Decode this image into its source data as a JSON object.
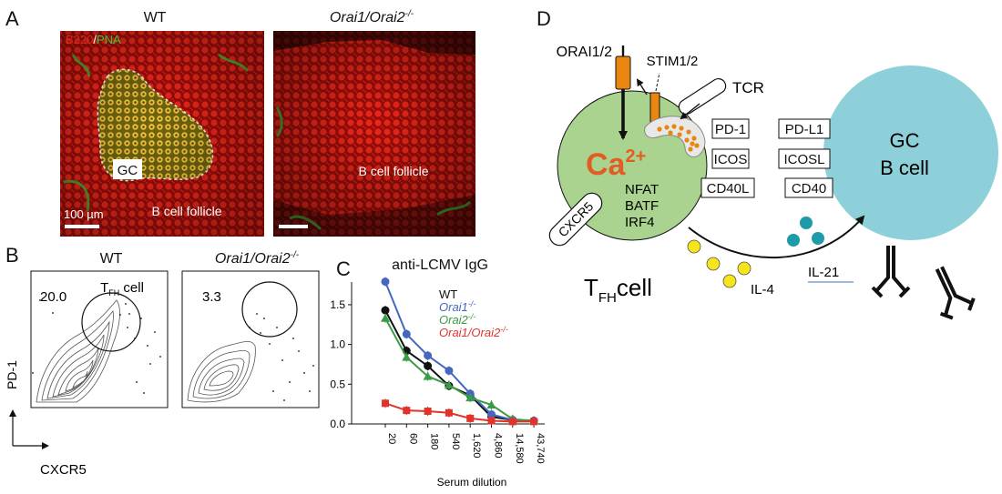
{
  "panels": {
    "a": {
      "letter": "A",
      "wt_title": "WT",
      "ko_title_main": "Orai1/Orai2",
      "ko_title_sup": "-/-",
      "stain_b220": "B220",
      "stain_sep": "/",
      "stain_pna": "PNA",
      "gc_label": "GC",
      "follicle_label_wt": "B cell follicle",
      "follicle_label_ko": "B cell follicle",
      "scale_label": "100 µm",
      "colors": {
        "b220": "#e2241c",
        "pna": "#3fc43a"
      }
    },
    "b": {
      "letter": "B",
      "wt_title": "WT",
      "ko_title_main": "Orai1/Orai2",
      "ko_title_sup": "-/-",
      "gate_label_main": "T",
      "gate_label_sub": "FH",
      "gate_label_rest": " cell",
      "wt_pct": "20.0",
      "ko_pct": "3.3",
      "y_axis": "PD-1",
      "x_axis": "CXCR5"
    },
    "c": {
      "letter": "C",
      "title": "anti-LCMV IgG",
      "xlabel": "Serum dilution"
    },
    "d": {
      "letter": "D",
      "orai": "ORAI1/2",
      "stim": "STIM1/2",
      "tcr": "TCR",
      "ca_main": "Ca",
      "ca_sup": "2+",
      "nfat": "NFAT",
      "batf": "BATF",
      "irf4": "IRF4",
      "cxcr5": "CXCR5",
      "tfh_main": "T",
      "tfh_sub": "FH",
      "tfh_rest": "cell",
      "tfh_markers": [
        "PD-1",
        "ICOS",
        "CD40L"
      ],
      "gc_markers": [
        "PD-L1",
        "ICOSL",
        "CD40"
      ],
      "gc_line1": "GC",
      "gc_line2": "B cell",
      "il4": "IL-4",
      "il21": "IL-21",
      "colors": {
        "tfh_cell": "#a9d38f",
        "gc_cell": "#8ed0da",
        "channel": "#e8860f",
        "calcium": "#e25d25",
        "il4_dot": "#f7e51c",
        "il21_dot": "#1f9aa8"
      }
    }
  },
  "chart_data": {
    "type": "line",
    "title": "anti-LCMV IgG",
    "xlabel": "Serum dilution",
    "ylabel": "",
    "categories": [
      "20",
      "60",
      "180",
      "540",
      "1,620",
      "4,860",
      "14,580",
      "43,740"
    ],
    "ylim": [
      0,
      1.9
    ],
    "yticks": [
      "0.0",
      "0.5",
      "1.0",
      "1.5"
    ],
    "legend_position": "top-right",
    "series": [
      {
        "name": "WT",
        "name_main": "WT",
        "name_sup": "",
        "color": "#111111",
        "values": [
          1.43,
          0.92,
          0.73,
          0.48,
          0.36,
          0.09,
          0.05,
          0.04
        ]
      },
      {
        "name": "Orai1-/-",
        "name_main": "Orai1",
        "name_sup": "-/-",
        "color": "#4667c0",
        "values": [
          1.79,
          1.13,
          0.86,
          0.67,
          0.38,
          0.12,
          0.05,
          0.04
        ]
      },
      {
        "name": "Orai2-/-",
        "name_main": "Orai2",
        "name_sup": "-/-",
        "color": "#3a9c46",
        "values": [
          1.33,
          0.84,
          0.6,
          0.49,
          0.33,
          0.24,
          0.06,
          0.04
        ]
      },
      {
        "name": "Orai1/Orai2-/-",
        "name_main": "Orai1/Orai2",
        "name_sup": "-/-",
        "color": "#e0332c",
        "values": [
          0.26,
          0.17,
          0.16,
          0.14,
          0.07,
          0.04,
          0.03,
          0.03
        ]
      }
    ]
  }
}
